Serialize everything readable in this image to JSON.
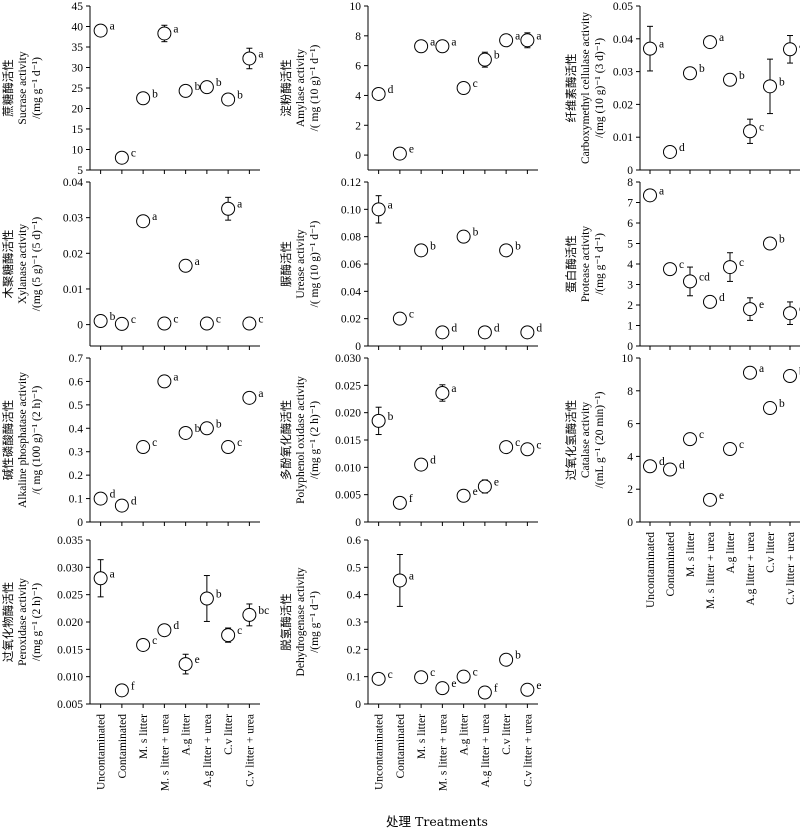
{
  "figure": {
    "x_title": "处理 Treatments",
    "treatments": [
      "Uncontaminated",
      "Contaminated",
      "M. s litter",
      "M. s litter + urea",
      "A.g litter",
      "A.g litter + urea",
      "C.v litter",
      "C.v litter + urea"
    ]
  },
  "chart_data": [
    {
      "id": "sucrase",
      "type": "scatter",
      "ylabel": [
        "蔗糖酶活性",
        "Sucrase activity",
        "/(mg g⁻¹ d⁻¹)"
      ],
      "ylim": [
        5,
        45
      ],
      "yticks": [
        "5",
        "10",
        "15",
        "20",
        "25",
        "30",
        "35",
        "40",
        "45"
      ],
      "values": [
        39,
        8,
        22.5,
        38.3,
        24.3,
        25.2,
        22.2,
        32.2
      ],
      "errors": [
        0,
        0,
        0,
        2.0,
        0,
        0,
        0,
        2.5
      ],
      "letters": [
        "a",
        "c",
        "b",
        "a",
        "b",
        "b",
        "b",
        "a"
      ]
    },
    {
      "id": "amylase",
      "type": "scatter",
      "ylabel": [
        "淀粉酶活性",
        "Amylase activity",
        "/( mg (10 g)⁻¹ d⁻¹)"
      ],
      "ylim": [
        -1,
        10
      ],
      "yticks": [
        "0",
        "2",
        "4",
        "6",
        "8",
        "10"
      ],
      "values": [
        4.1,
        0.1,
        7.3,
        7.3,
        4.5,
        6.4,
        7.7,
        7.7
      ],
      "errors": [
        0,
        0,
        0,
        0,
        0,
        0.5,
        0,
        0.5
      ],
      "letters": [
        "d",
        "e",
        "a",
        "a",
        "c",
        "b",
        "a",
        "a"
      ]
    },
    {
      "id": "cellulase",
      "type": "scatter",
      "ylabel": [
        "纤维素酶活性",
        "Carboxymethyl cellulase activity",
        "/(mg (10 g)⁻¹ (3 d)⁻¹)"
      ],
      "ylim": [
        0,
        0.05
      ],
      "yticks": [
        "0",
        "0.01",
        "0.02",
        "0.03",
        "0.04",
        "0.05"
      ],
      "values": [
        0.037,
        0.0055,
        0.0295,
        0.039,
        0.0275,
        0.0118,
        0.0255,
        0.0368
      ],
      "errors": [
        0.0068,
        0,
        0,
        0.001,
        0,
        0.0037,
        0.0083,
        0.0042
      ],
      "letters": [
        "a",
        "d",
        "b",
        "a",
        "b",
        "c",
        "b",
        "a"
      ]
    },
    {
      "id": "xylanase",
      "type": "scatter",
      "ylabel": [
        "木聚糖酶活性",
        "Xylanase activity",
        "/(mg (5 g)⁻¹ (5 d)⁻¹)"
      ],
      "ylim": [
        -0.006,
        0.04
      ],
      "yticks": [
        "0",
        "0.01",
        "0.02",
        "0.03",
        "0.04"
      ],
      "values": [
        0.001,
        0.0002,
        0.029,
        0.0003,
        0.0165,
        0.0003,
        0.0325,
        0.0003
      ],
      "errors": [
        0,
        0,
        0,
        0,
        0,
        0,
        0.0032,
        0
      ],
      "letters": [
        "b",
        "c",
        "a",
        "c",
        "a",
        "c",
        "a",
        "c"
      ]
    },
    {
      "id": "urease",
      "type": "scatter",
      "ylabel": [
        "脲酶活性",
        "Urease activity",
        "/( mg (10 g)⁻¹ d⁻¹)"
      ],
      "ylim": [
        0,
        0.12
      ],
      "yticks": [
        "0",
        "0.02",
        "0.04",
        "0.06",
        "0.08",
        "0.10",
        "0.12"
      ],
      "values": [
        0.1,
        0.02,
        0.07,
        0.01,
        0.08,
        0.01,
        0.07,
        0.01
      ],
      "errors": [
        0.01,
        0,
        0,
        0,
        0,
        0,
        0,
        0
      ],
      "letters": [
        "a",
        "c",
        "b",
        "d",
        "b",
        "d",
        "b",
        "d"
      ]
    },
    {
      "id": "protease",
      "type": "scatter",
      "ylabel": [
        "蛋白酶活性",
        "Protease activity",
        "/(mg g⁻¹ d⁻¹)"
      ],
      "ylim": [
        0,
        8
      ],
      "yticks": [
        "0",
        "1",
        "2",
        "3",
        "4",
        "5",
        "6",
        "7",
        "8"
      ],
      "values": [
        7.35,
        3.75,
        3.15,
        2.15,
        3.85,
        1.8,
        5.0,
        1.6
      ],
      "errors": [
        0,
        0,
        0.7,
        0,
        0.7,
        0.55,
        0,
        0.55
      ],
      "letters": [
        "a",
        "c",
        "cd",
        "d",
        "c",
        "e",
        "b",
        "e"
      ]
    },
    {
      "id": "alkaline_phosphatase",
      "type": "scatter",
      "ylabel": [
        "碱性磷酸酶活性",
        "Alkaline phosphatase activity",
        "/( mg (100 g)⁻¹ (2 h)⁻¹)"
      ],
      "ylim": [
        0,
        0.7
      ],
      "yticks": [
        "0",
        "0.1",
        "0.2",
        "0.3",
        "0.4",
        "0.5",
        "0.6",
        "0.7"
      ],
      "values": [
        0.1,
        0.07,
        0.32,
        0.6,
        0.38,
        0.4,
        0.32,
        0.53
      ],
      "errors": [
        0,
        0,
        0,
        0,
        0,
        0,
        0,
        0
      ],
      "letters": [
        "d",
        "d",
        "c",
        "a",
        "b",
        "b",
        "c",
        "a"
      ]
    },
    {
      "id": "polyphenol_oxidase",
      "type": "scatter",
      "ylabel": [
        "多酚氧化酶活性",
        "Polyphenol oxidase activity",
        "/(mg g⁻¹ (2 h)⁻¹)"
      ],
      "ylim": [
        0,
        0.03
      ],
      "yticks": [
        "0",
        "0.005",
        "0.010",
        "0.015",
        "0.020",
        "0.025",
        "0.030"
      ],
      "values": [
        0.0185,
        0.0035,
        0.0105,
        0.0236,
        0.0048,
        0.0065,
        0.0137,
        0.0133
      ],
      "errors": [
        0.0025,
        0,
        0,
        0.0015,
        0,
        0.0012,
        0,
        0
      ],
      "letters": [
        "b",
        "f",
        "d",
        "a",
        "e",
        "e",
        "c",
        "c"
      ]
    },
    {
      "id": "catalase",
      "type": "scatter",
      "ylabel": [
        "过氧化氢酶活性",
        "Catalase activity",
        "/(mL g⁻¹ (20 min)⁻¹)"
      ],
      "ylim": [
        0,
        10
      ],
      "yticks": [
        "0",
        "2",
        "4",
        "6",
        "8",
        "10"
      ],
      "values": [
        3.4,
        3.2,
        5.05,
        1.35,
        4.45,
        9.1,
        6.95,
        8.9
      ],
      "errors": [
        0,
        0,
        0,
        0,
        0,
        0,
        0,
        0
      ],
      "letters": [
        "d",
        "d",
        "c",
        "e",
        "c",
        "a",
        "b",
        "b"
      ]
    },
    {
      "id": "peroxidase",
      "type": "scatter",
      "ylabel": [
        "过氧化物酶活性",
        "Peroxidase activity",
        "/(mg g⁻¹ (2 h)⁻¹)"
      ],
      "ylim": [
        0.005,
        0.035
      ],
      "yticks": [
        "0.005",
        "0.010",
        "0.015",
        "0.020",
        "0.025",
        "0.030",
        "0.035"
      ],
      "values": [
        0.028,
        0.0075,
        0.0158,
        0.0185,
        0.0123,
        0.0243,
        0.0176,
        0.0213
      ],
      "errors": [
        0.0034,
        0,
        0.001,
        0,
        0.0018,
        0.0042,
        0.0013,
        0.002
      ],
      "letters": [
        "a",
        "f",
        "c",
        "d",
        "e",
        "b",
        "c",
        "bc"
      ]
    },
    {
      "id": "dehydrogenase",
      "type": "scatter",
      "ylabel": [
        "脱氢酶活性",
        "Dehydrogenase activity",
        "/(mg g⁻¹ d⁻¹)"
      ],
      "ylim": [
        0,
        0.6
      ],
      "yticks": [
        "0",
        "0.1",
        "0.2",
        "0.3",
        "0.4",
        "0.5",
        "0.6"
      ],
      "values": [
        0.092,
        0.452,
        0.098,
        0.058,
        0.1,
        0.042,
        0.162,
        0.052
      ],
      "errors": [
        0,
        0.095,
        0,
        0,
        0,
        0,
        0.015,
        0
      ],
      "letters": [
        "c",
        "a",
        "c",
        "e",
        "c",
        "f",
        "b",
        "e"
      ]
    }
  ]
}
